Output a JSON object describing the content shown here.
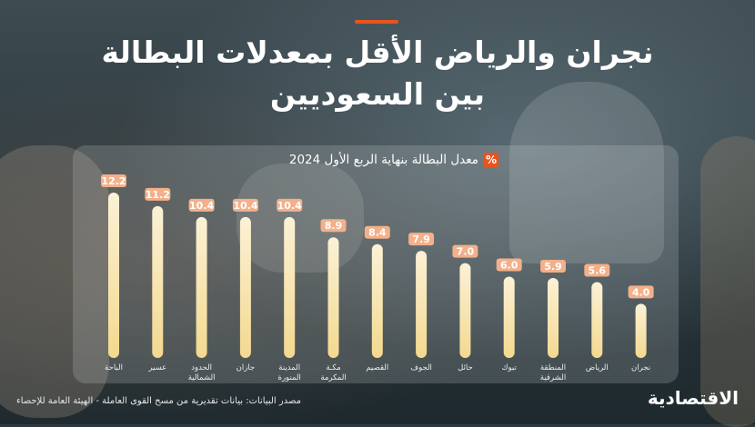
{
  "title_line1": "نجران والرياض الأقل بمعدلات البطالة",
  "title_line2": "بين السعوديين",
  "percent_sign": "%",
  "source_text": "مصدر البيانات: بيانات تقديرية من مسح القوى العاملة - الهيئة العامة للإحصاء",
  "logo_text": "الاقتصادية",
  "colors": {
    "accent": "#e8541e",
    "bar_top": "#fbf1d6",
    "bar_bottom": "#f3d98f",
    "label_bg": "#f3b08a",
    "label_text": "#ffffff"
  },
  "chart_data": {
    "type": "bar",
    "title": "معدل البطالة بنهاية الربع الأول 2024",
    "categories": [
      "الباحة",
      "عسير",
      "الحدود الشمالية",
      "جازان",
      "المدينة المنورة",
      "مكة المكرمة",
      "القصيم",
      "الجوف",
      "حائل",
      "تبوك",
      "المنطقة الشرقية",
      "الرياض",
      "نجران"
    ],
    "category_lines": [
      [
        "الباحة"
      ],
      [
        "عسير"
      ],
      [
        "الحدود",
        "الشمالية"
      ],
      [
        "جازان"
      ],
      [
        "المدينة",
        "المنورة"
      ],
      [
        "مكـة",
        "المكرمة"
      ],
      [
        "القصيم"
      ],
      [
        "الجوف"
      ],
      [
        "حائل"
      ],
      [
        "تبوك"
      ],
      [
        "المنطقة",
        "الشرقية"
      ],
      [
        "الرياض"
      ],
      [
        "نجران"
      ]
    ],
    "values": [
      12.2,
      11.2,
      10.4,
      10.4,
      10.4,
      8.9,
      8.4,
      7.9,
      7.0,
      6.0,
      5.9,
      5.6,
      4.0
    ],
    "value_labels": [
      "12.2",
      "11.2",
      "10.4",
      "10.4",
      "10.4",
      "8.9",
      "8.4",
      "7.9",
      "7.0",
      "6.0",
      "5.9",
      "5.6",
      "4.0"
    ],
    "ylim": [
      0,
      12.2
    ],
    "xlabel": "",
    "ylabel": "",
    "grid": false,
    "legend": "none"
  }
}
